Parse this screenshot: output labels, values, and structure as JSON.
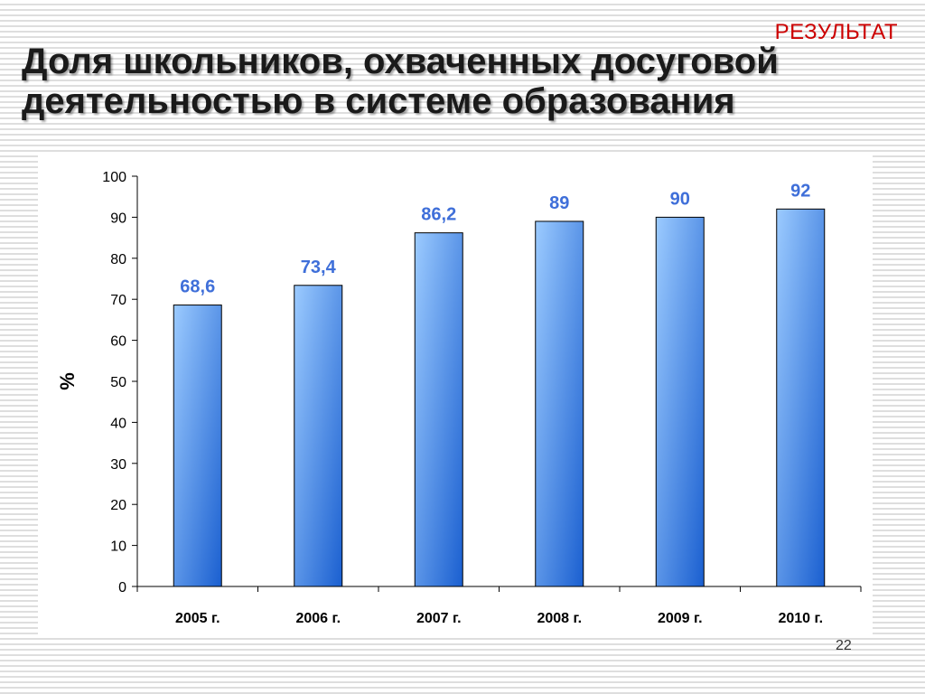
{
  "slide": {
    "corner_label": "РЕЗУЛЬТАТ",
    "title": "Доля школьников, охваченных досуговой деятельностью в системе образования",
    "page_number": "22"
  },
  "colors": {
    "corner_label": "#cc0000",
    "bar_light": "#9ccbff",
    "bar_dark": "#1a5fd0",
    "data_label": "#3f6fd9"
  },
  "chart_data": {
    "type": "bar",
    "title": "Доля школьников, охваченных досуговой деятельностью в системе образования",
    "xlabel": "",
    "ylabel": "%",
    "ylim": [
      0,
      100
    ],
    "yticks": [
      0,
      10,
      20,
      30,
      40,
      50,
      60,
      70,
      80,
      90,
      100
    ],
    "categories": [
      "2005 г.",
      "2006 г.",
      "2007 г.",
      "2008 г.",
      "2009 г.",
      "2010  г."
    ],
    "values": [
      68.6,
      73.4,
      86.2,
      89,
      90,
      92
    ],
    "data_labels": [
      "68,6",
      "73,4",
      "86,2",
      "89",
      "90",
      "92"
    ],
    "grid": false,
    "legend": "none"
  }
}
